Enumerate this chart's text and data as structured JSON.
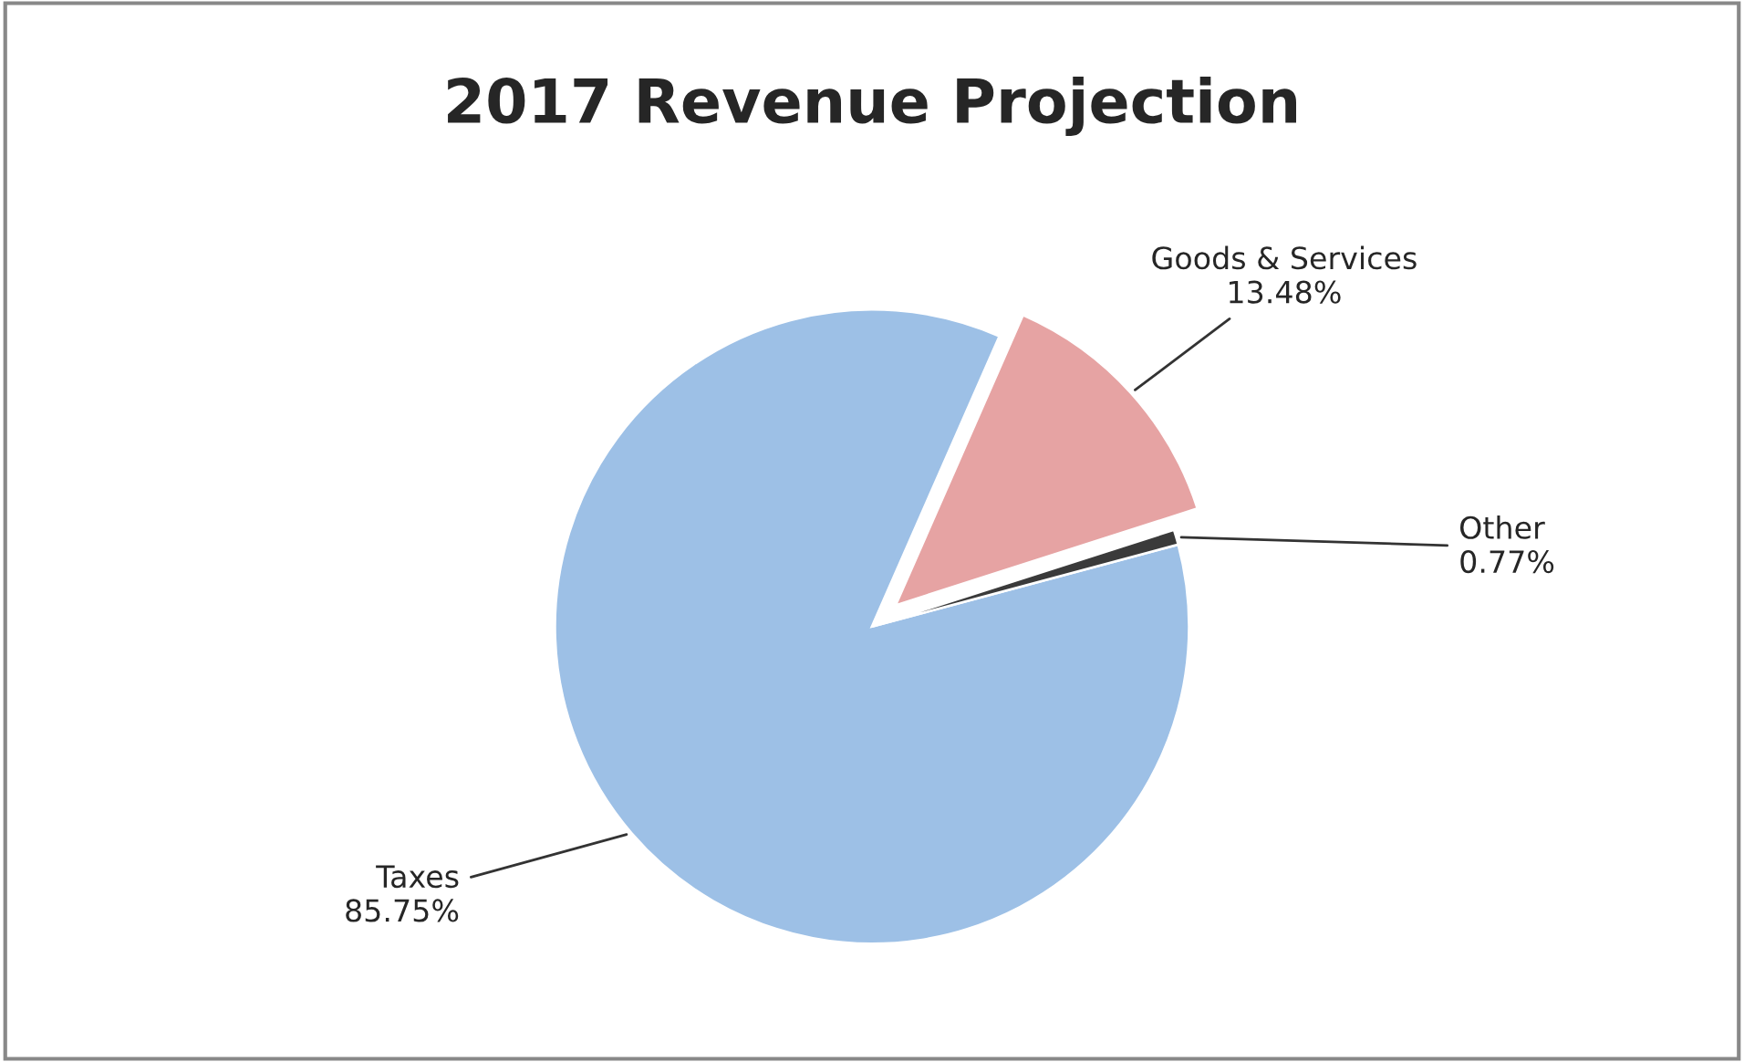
{
  "chart_data": {
    "type": "pie",
    "title": "2017 Revenue Projection",
    "categories": [
      "Taxes",
      "Goods & Services",
      "Other"
    ],
    "values": [
      85.75,
      13.48,
      0.77
    ],
    "value_labels": [
      "85.75%",
      "13.48%",
      "0.77%"
    ],
    "colors": [
      "#9dc0e6",
      "#e6a3a3",
      "#3a3a3a"
    ],
    "legend": false
  }
}
